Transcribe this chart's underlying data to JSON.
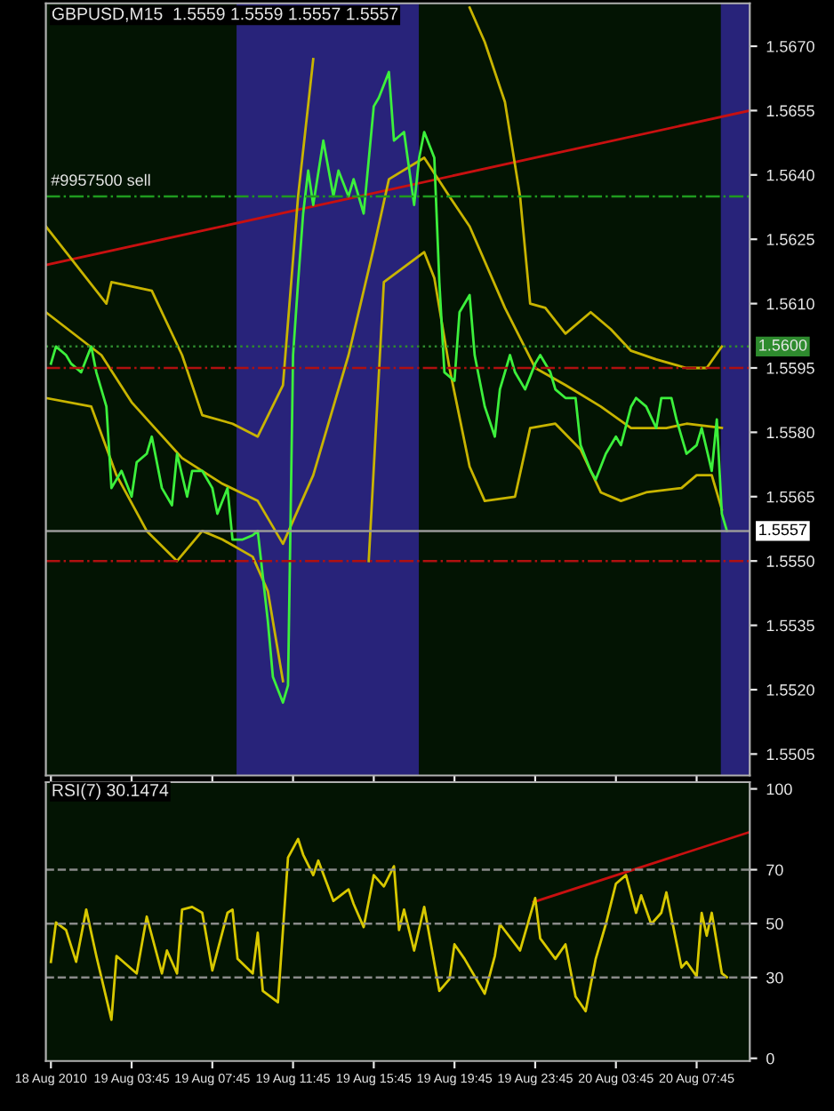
{
  "chart_data": [
    {
      "type": "line",
      "title": "GBPUSD,M15  1.5559 1.5559 1.5557 1.5557",
      "xlim": [
        "2010-08-18T23:30",
        "2010-08-20T10:23"
      ],
      "ylim": [
        1.55,
        1.568
      ],
      "xticks": [
        {
          "value": "2010-08-18T23:45",
          "label": null
        },
        {
          "value": "2010-08-19T03:45",
          "label": null
        },
        {
          "value": "2010-08-19T07:45",
          "label": null
        },
        {
          "value": "2010-08-19T11:45",
          "label": null
        },
        {
          "value": "2010-08-19T15:45",
          "label": null
        },
        {
          "value": "2010-08-19T19:45",
          "label": null
        },
        {
          "value": "2010-08-19T23:45",
          "label": null
        },
        {
          "value": "2010-08-20T03:45",
          "label": null
        },
        {
          "value": "2010-08-20T07:45",
          "label": null
        }
      ],
      "yticks": [
        {
          "value": 1.567,
          "label": "1.5670"
        },
        {
          "value": 1.5655,
          "label": "1.5655"
        },
        {
          "value": 1.564,
          "label": "1.5640"
        },
        {
          "value": 1.5625,
          "label": "1.5625"
        },
        {
          "value": 1.561,
          "label": "1.5610"
        },
        {
          "value": 1.5595,
          "label": "1.5595"
        },
        {
          "value": 1.558,
          "label": "1.5580"
        },
        {
          "value": 1.5565,
          "label": "1.5565"
        },
        {
          "value": 1.555,
          "label": "1.5550"
        },
        {
          "value": 1.5535,
          "label": "1.5535"
        },
        {
          "value": 1.552,
          "label": "1.5520"
        },
        {
          "value": 1.5505,
          "label": "1.5505"
        }
      ],
      "tick_labels": "y",
      "marker": "none",
      "line_style": "solid",
      "bands": [
        {
          "axis": "x",
          "from": "2010-08-19T08:57",
          "to": "2010-08-19T17:59",
          "color": "#28237a"
        },
        {
          "axis": "x",
          "from": "2010-08-20T08:57",
          "to": "2010-08-20T10:23",
          "color": "#28237a"
        }
      ],
      "ref_lines": [
        {
          "axis": "y",
          "value": 1.56,
          "label": "1.5600",
          "color": "#2e8b2e",
          "line_style": "dotted"
        },
        {
          "axis": "y",
          "value": 1.5557,
          "label": "1.5557",
          "color": "#9a9a9a",
          "line_style": "solid"
        },
        {
          "axis": "y",
          "value": 1.5595,
          "color": "#b01010",
          "line_style": "dashdot"
        },
        {
          "axis": "y",
          "value": 1.555,
          "color": "#b01010",
          "line_style": "dashdot"
        },
        {
          "axis": "y",
          "value": 1.5635,
          "color": "#1f9a1f",
          "line_style": "dashdot"
        }
      ],
      "annotations": [
        {
          "text": "#9957500 sell",
          "x": "2010-08-18T23:45",
          "y": 1.5635
        }
      ],
      "series": [
        {
          "color": "#c81010",
          "x": [
            "2010-08-18T23:30",
            "2010-08-20T10:23"
          ],
          "values": [
            1.5619,
            1.5655
          ]
        },
        {
          "color": "#c8b400",
          "x": [
            "2010-08-18T23:30",
            "2010-08-19T02:30",
            "2010-08-19T02:45",
            "2010-08-19T04:45",
            "2010-08-19T06:15",
            "2010-08-19T07:15",
            "2010-08-19T08:45",
            "2010-08-19T10:00",
            "2010-08-19T11:15",
            "2010-08-19T12:00",
            "2010-08-19T12:45",
            "2010-08-19T13:15",
            "2010-08-19T16:15",
            "2010-08-19T19:30",
            "2010-08-19T20:30",
            "2010-08-19T21:15",
            "2010-08-19T22:15",
            "2010-08-19T23:00",
            "2010-08-19T23:30",
            "2010-08-20T00:15",
            "2010-08-20T01:15",
            "2010-08-20T02:30",
            "2010-08-20T03:30",
            "2010-08-20T04:30",
            "2010-08-20T05:45",
            "2010-08-20T07:15",
            "2010-08-20T08:15",
            "2010-08-20T09:00"
          ],
          "values": [
            1.5628,
            1.561,
            1.5615,
            1.5613,
            1.5598,
            1.5584,
            1.5582,
            1.5579,
            1.5591,
            1.5635,
            1.5667,
            null,
            null,
            null,
            1.5679,
            1.5671,
            1.5657,
            1.5635,
            1.561,
            1.5609,
            1.5603,
            1.5608,
            1.5604,
            1.5599,
            1.5597,
            1.5595,
            1.5595,
            1.56
          ]
        },
        {
          "color": "#c8b400",
          "x": [
            "2010-08-18T23:30",
            "2010-08-19T02:15",
            "2010-08-19T03:45",
            "2010-08-19T06:15",
            "2010-08-19T08:15",
            "2010-08-19T10:00",
            "2010-08-19T11:15",
            "2010-08-19T12:45",
            "2010-08-19T14:30",
            "2010-08-19T15:45",
            "2010-08-19T16:30",
            "2010-08-19T18:15",
            "2010-08-19T19:30",
            "2010-08-19T20:30",
            "2010-08-19T22:15",
            "2010-08-19T23:45",
            "2010-08-20T01:15",
            "2010-08-20T03:00",
            "2010-08-20T04:30",
            "2010-08-20T06:15",
            "2010-08-20T07:15",
            "2010-08-20T09:00"
          ],
          "values": [
            1.5608,
            1.5598,
            1.5587,
            1.5574,
            1.5568,
            1.5564,
            1.5554,
            1.557,
            1.5598,
            1.5623,
            1.5639,
            1.5644,
            1.5635,
            1.5628,
            1.5609,
            1.5595,
            1.5591,
            1.5586,
            1.5581,
            1.5581,
            1.5582,
            1.5581
          ]
        },
        {
          "color": "#c8b400",
          "x": [
            "2010-08-18T23:30",
            "2010-08-19T01:45",
            "2010-08-19T03:00",
            "2010-08-19T04:30",
            "2010-08-19T06:00",
            "2010-08-19T07:15",
            "2010-08-19T08:15",
            "2010-08-19T09:45",
            "2010-08-19T10:30",
            "2010-08-19T11:15",
            "2010-08-19T11:45",
            "2010-08-19T13:00",
            "2010-08-19T14:30",
            "2010-08-19T15:30",
            "2010-08-19T16:15",
            "2010-08-19T18:15",
            "2010-08-19T18:45",
            "2010-08-19T19:30",
            "2010-08-19T20:30",
            "2010-08-19T21:15",
            "2010-08-19T22:45",
            "2010-08-19T23:30",
            "2010-08-20T00:45",
            "2010-08-20T02:00",
            "2010-08-20T03:00",
            "2010-08-20T04:00",
            "2010-08-20T05:15",
            "2010-08-20T07:00",
            "2010-08-20T07:45",
            "2010-08-20T08:30",
            "2010-08-20T09:00"
          ],
          "values": [
            1.5588,
            1.5586,
            1.557,
            1.5557,
            1.555,
            1.5557,
            1.5555,
            1.5551,
            1.5543,
            1.5522,
            null,
            null,
            null,
            1.555,
            1.5615,
            1.5622,
            1.5616,
            1.5595,
            1.5572,
            1.5564,
            1.5565,
            1.5581,
            1.5582,
            1.5576,
            1.5566,
            1.5564,
            1.5566,
            1.5567,
            1.557,
            1.557,
            1.5562
          ]
        },
        {
          "color": "#3cf03c",
          "x": [
            "2010-08-18T23:45",
            "2010-08-19T00:00",
            "2010-08-19T00:30",
            "2010-08-19T00:45",
            "2010-08-19T01:15",
            "2010-08-19T01:45",
            "2010-08-19T02:00",
            "2010-08-19T02:30",
            "2010-08-19T02:45",
            "2010-08-19T03:15",
            "2010-08-19T03:45",
            "2010-08-19T04:00",
            "2010-08-19T04:30",
            "2010-08-19T04:45",
            "2010-08-19T05:15",
            "2010-08-19T05:45",
            "2010-08-19T06:00",
            "2010-08-19T06:30",
            "2010-08-19T06:45",
            "2010-08-19T07:15",
            "2010-08-19T07:45",
            "2010-08-19T08:00",
            "2010-08-19T08:30",
            "2010-08-19T08:45",
            "2010-08-19T09:15",
            "2010-08-19T09:45",
            "2010-08-19T10:00",
            "2010-08-19T10:30",
            "2010-08-19T10:45",
            "2010-08-19T11:15",
            "2010-08-19T11:30",
            "2010-08-19T11:45",
            "2010-08-19T12:00",
            "2010-08-19T12:15",
            "2010-08-19T12:30",
            "2010-08-19T12:45",
            "2010-08-19T13:15",
            "2010-08-19T13:45",
            "2010-08-19T14:00",
            "2010-08-19T14:30",
            "2010-08-19T14:45",
            "2010-08-19T15:15",
            "2010-08-19T15:45",
            "2010-08-19T16:00",
            "2010-08-19T16:30",
            "2010-08-19T16:45",
            "2010-08-19T17:15",
            "2010-08-19T17:45",
            "2010-08-19T18:00",
            "2010-08-19T18:15",
            "2010-08-19T18:45",
            "2010-08-19T19:00",
            "2010-08-19T19:15",
            "2010-08-19T19:45",
            "2010-08-19T20:00",
            "2010-08-19T20:30",
            "2010-08-19T20:45",
            "2010-08-19T21:15",
            "2010-08-19T21:45",
            "2010-08-19T22:00",
            "2010-08-19T22:30",
            "2010-08-19T22:45",
            "2010-08-19T23:15",
            "2010-08-19T23:45",
            "2010-08-20T00:00",
            "2010-08-20T00:30",
            "2010-08-20T00:45",
            "2010-08-20T01:15",
            "2010-08-20T01:45",
            "2010-08-20T02:00",
            "2010-08-20T02:30",
            "2010-08-20T02:45",
            "2010-08-20T03:15",
            "2010-08-20T03:45",
            "2010-08-20T04:00",
            "2010-08-20T04:30",
            "2010-08-20T04:45",
            "2010-08-20T05:15",
            "2010-08-20T05:45",
            "2010-08-20T06:00",
            "2010-08-20T06:30",
            "2010-08-20T06:45",
            "2010-08-20T07:15",
            "2010-08-20T07:45",
            "2010-08-20T08:00",
            "2010-08-20T08:30",
            "2010-08-20T08:45",
            "2010-08-20T09:00",
            "2010-08-20T09:15"
          ],
          "values": [
            1.5596,
            1.56,
            1.5598,
            1.5596,
            1.5594,
            1.56,
            1.5594,
            1.5586,
            1.5567,
            1.5571,
            1.5565,
            1.5573,
            1.5575,
            1.5579,
            1.5567,
            1.5563,
            1.5575,
            1.5565,
            1.5571,
            1.5571,
            1.5567,
            1.5561,
            1.5567,
            1.5555,
            1.5555,
            1.5556,
            1.5557,
            1.5536,
            1.5523,
            1.5517,
            1.5521,
            1.5598,
            1.5615,
            1.5631,
            1.5641,
            1.5633,
            1.5648,
            1.5635,
            1.5641,
            1.5635,
            1.5639,
            1.5631,
            1.5656,
            1.5658,
            1.5664,
            1.5648,
            1.565,
            1.5633,
            1.5644,
            1.565,
            1.5644,
            1.5615,
            1.5594,
            1.5592,
            1.5608,
            1.5612,
            1.5598,
            1.5586,
            1.5579,
            1.559,
            1.5598,
            1.5594,
            1.559,
            1.5596,
            1.5598,
            1.5594,
            1.559,
            1.5588,
            1.5588,
            1.5577,
            1.5571,
            1.5569,
            1.5575,
            1.5579,
            1.5577,
            1.5586,
            1.5588,
            1.5586,
            1.5581,
            1.5588,
            1.5588,
            1.5583,
            1.5575,
            1.5577,
            1.5581,
            1.5571,
            1.5583,
            1.5561,
            1.5557
          ]
        }
      ]
    },
    {
      "type": "line",
      "title": "RSI(7) 30.1474",
      "xlim": [
        "2010-08-18T23:30",
        "2010-08-20T10:23"
      ],
      "ylim": [
        -1,
        102.5
      ],
      "xticks": [
        {
          "value": "2010-08-18T23:45",
          "label": "18 Aug 2010"
        },
        {
          "value": "2010-08-19T03:45",
          "label": "19 Aug 03:45"
        },
        {
          "value": "2010-08-19T07:45",
          "label": "19 Aug 07:45"
        },
        {
          "value": "2010-08-19T11:45",
          "label": "19 Aug 11:45"
        },
        {
          "value": "2010-08-19T15:45",
          "label": "19 Aug 15:45"
        },
        {
          "value": "2010-08-19T19:45",
          "label": "19 Aug 19:45"
        },
        {
          "value": "2010-08-19T23:45",
          "label": "19 Aug 23:45"
        },
        {
          "value": "2010-08-20T03:45",
          "label": "20 Aug 03:45"
        },
        {
          "value": "2010-08-20T07:45",
          "label": "20 Aug 07:45"
        }
      ],
      "yticks": [
        100,
        70,
        50,
        30,
        0
      ],
      "marker": "none",
      "line_style": "solid",
      "ref_lines": [
        {
          "axis": "y",
          "value": 70,
          "color": "#8a8a8a",
          "line_style": "dashed"
        },
        {
          "axis": "y",
          "value": 50,
          "color": "#8a8a8a",
          "line_style": "dashed"
        },
        {
          "axis": "y",
          "value": 30,
          "color": "#8a8a8a",
          "line_style": "dashed"
        }
      ],
      "series": [
        {
          "color": "#c81010",
          "x": [
            "2010-08-19T23:40",
            "2010-08-20T10:23"
          ],
          "values": [
            58,
            84
          ]
        },
        {
          "color": "#d8c800",
          "x": [
            "2010-08-18T23:45",
            "2010-08-19T00:00",
            "2010-08-19T00:30",
            "2010-08-19T01:00",
            "2010-08-19T01:30",
            "2010-08-19T02:00",
            "2010-08-19T02:45",
            "2010-08-19T03:00",
            "2010-08-19T04:00",
            "2010-08-19T04:30",
            "2010-08-19T05:15",
            "2010-08-19T05:30",
            "2010-08-19T06:00",
            "2010-08-19T06:15",
            "2010-08-19T06:45",
            "2010-08-19T07:15",
            "2010-08-19T07:45",
            "2010-08-19T08:30",
            "2010-08-19T08:45",
            "2010-08-19T09:00",
            "2010-08-19T09:45",
            "2010-08-19T10:00",
            "2010-08-19T10:15",
            "2010-08-19T11:00",
            "2010-08-19T11:30",
            "2010-08-19T12:00",
            "2010-08-19T12:15",
            "2010-08-19T12:45",
            "2010-08-19T13:00",
            "2010-08-19T13:45",
            "2010-08-19T14:30",
            "2010-08-19T14:45",
            "2010-08-19T15:15",
            "2010-08-19T15:45",
            "2010-08-19T16:15",
            "2010-08-19T16:45",
            "2010-08-19T17:00",
            "2010-08-19T17:15",
            "2010-08-19T17:45",
            "2010-08-19T18:15",
            "2010-08-19T19:00",
            "2010-08-19T19:30",
            "2010-08-19T19:45",
            "2010-08-19T20:15",
            "2010-08-19T21:15",
            "2010-08-19T21:45",
            "2010-08-19T22:00",
            "2010-08-19T23:00",
            "2010-08-19T23:45",
            "2010-08-20T00:00",
            "2010-08-20T00:45",
            "2010-08-20T01:15",
            "2010-08-20T01:45",
            "2010-08-20T02:15",
            "2010-08-20T02:30",
            "2010-08-20T02:45",
            "2010-08-20T03:15",
            "2010-08-20T03:45",
            "2010-08-20T04:15",
            "2010-08-20T04:45",
            "2010-08-20T05:00",
            "2010-08-20T05:30",
            "2010-08-20T06:00",
            "2010-08-20T06:15",
            "2010-08-20T07:00",
            "2010-08-20T07:15",
            "2010-08-20T07:45",
            "2010-08-20T08:00",
            "2010-08-20T08:15",
            "2010-08-20T08:30",
            "2010-08-20T09:00",
            "2010-08-20T09:15"
          ],
          "values": [
            35.8,
            50.4,
            47.6,
            35.8,
            55.2,
            38,
            14.3,
            38,
            31.5,
            52.6,
            31.5,
            40,
            31.5,
            55.2,
            56.2,
            54,
            32.6,
            54,
            55.2,
            36.9,
            31.5,
            46.6,
            25,
            20.8,
            74.5,
            81.4,
            75.6,
            68,
            73.4,
            58.4,
            62.7,
            57.3,
            48.7,
            68,
            63.8,
            71.3,
            47.6,
            55.2,
            40,
            56.2,
            25,
            29.4,
            42.3,
            36.9,
            24,
            38,
            49.8,
            40,
            59.5,
            44.5,
            36.9,
            42.3,
            22.9,
            17.5,
            27.2,
            36.9,
            49.8,
            64.8,
            68,
            54,
            60.5,
            49.8,
            54,
            61.6,
            33.7,
            35.8,
            30.4,
            54,
            45.5,
            54,
            31.5,
            30.1
          ]
        }
      ]
    }
  ]
}
